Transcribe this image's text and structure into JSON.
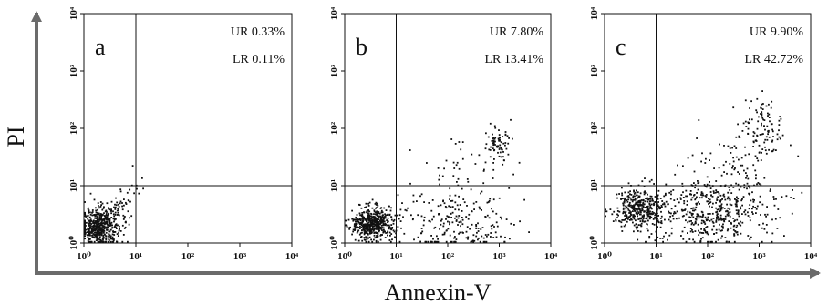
{
  "figure": {
    "x_axis_title": "Annexin-V",
    "y_axis_title": "PI",
    "axis_color": "#6b6b6b",
    "point_color": "#111111"
  },
  "chart_data": [
    {
      "type": "scatter",
      "panel_label": "a",
      "xscale": "log",
      "yscale": "log",
      "xlim": [
        1,
        10000
      ],
      "ylim": [
        1,
        10000
      ],
      "x_tick_labels": [
        "10⁰",
        "10¹",
        "10²",
        "10³",
        "10⁴"
      ],
      "y_tick_labels": [
        "10⁰",
        "10¹",
        "10²",
        "10³",
        "10⁴"
      ],
      "gates": {
        "x": 10,
        "y": 10
      },
      "quadrant_labels": [
        {
          "quadrant": "UR",
          "text": "UR 0.33%"
        },
        {
          "quadrant": "LR",
          "text": "LR 0.11%"
        }
      ],
      "clusters": [
        {
          "center": [
            2.0,
            1.9
          ],
          "spread_log10": [
            0.18,
            0.16
          ],
          "count": 480
        },
        {
          "center": [
            4.5,
            4.2
          ],
          "spread_log10": [
            0.18,
            0.18
          ],
          "count": 60
        },
        {
          "center": [
            11,
            11
          ],
          "spread_log10": [
            0.15,
            0.15
          ],
          "count": 8
        }
      ]
    },
    {
      "type": "scatter",
      "panel_label": "b",
      "xscale": "log",
      "yscale": "log",
      "xlim": [
        1,
        10000
      ],
      "ylim": [
        1,
        10000
      ],
      "x_tick_labels": [
        "10⁰",
        "10¹",
        "10²",
        "10³",
        "10⁴"
      ],
      "y_tick_labels": [
        "10⁰",
        "10¹",
        "10²",
        "10³",
        "10⁴"
      ],
      "gates": {
        "x": 10,
        "y": 10
      },
      "quadrant_labels": [
        {
          "quadrant": "UR",
          "text": "UR 7.80%"
        },
        {
          "quadrant": "LR",
          "text": "LR 13.41%"
        }
      ],
      "clusters": [
        {
          "center": [
            3.5,
            2.2
          ],
          "spread_log10": [
            0.2,
            0.14
          ],
          "count": 520
        },
        {
          "center": [
            150,
            2.5
          ],
          "spread_log10": [
            0.55,
            0.3
          ],
          "count": 230
        },
        {
          "center": [
            900,
            55
          ],
          "spread_log10": [
            0.12,
            0.16
          ],
          "count": 70
        },
        {
          "center": [
            150,
            25
          ],
          "spread_log10": [
            0.45,
            0.25
          ],
          "count": 40
        }
      ]
    },
    {
      "type": "scatter",
      "panel_label": "c",
      "xscale": "log",
      "yscale": "log",
      "xlim": [
        1,
        10000
      ],
      "ylim": [
        1,
        10000
      ],
      "x_tick_labels": [
        "10⁰",
        "10¹",
        "10²",
        "10³",
        "10⁴"
      ],
      "y_tick_labels": [
        "10⁰",
        "10¹",
        "10²",
        "10³",
        "10⁴"
      ],
      "gates": {
        "x": 10,
        "y": 10
      },
      "quadrant_labels": [
        {
          "quadrant": "UR",
          "text": "UR 9.90%"
        },
        {
          "quadrant": "LR",
          "text": "LR 42.72%"
        }
      ],
      "clusters": [
        {
          "center": [
            5,
            4
          ],
          "spread_log10": [
            0.25,
            0.18
          ],
          "count": 420
        },
        {
          "center": [
            150,
            3.5
          ],
          "spread_log10": [
            0.55,
            0.3
          ],
          "count": 470
        },
        {
          "center": [
            1000,
            100
          ],
          "spread_log10": [
            0.25,
            0.3
          ],
          "count": 110
        },
        {
          "center": [
            300,
            25
          ],
          "spread_log10": [
            0.4,
            0.3
          ],
          "count": 60
        }
      ]
    }
  ]
}
